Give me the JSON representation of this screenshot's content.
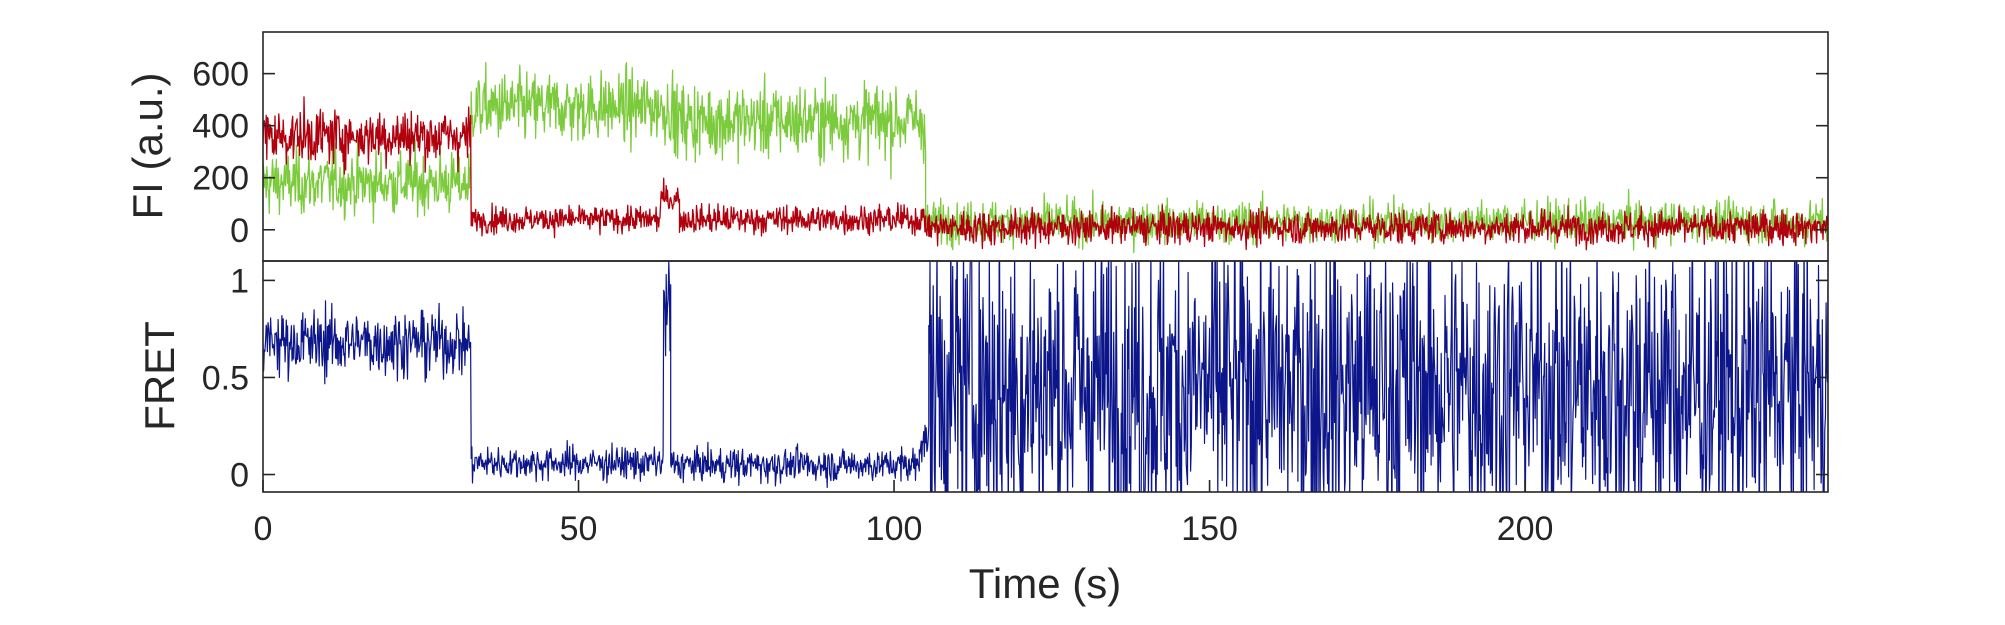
{
  "chart_data": [
    {
      "type": "line",
      "panel": "top",
      "xlabel": "",
      "ylabel": "FI (a.u.)",
      "xlim": [
        0,
        248
      ],
      "ylim": [
        -120,
        760
      ],
      "yticks": [
        0,
        200,
        400,
        600
      ],
      "ytick_labels": [
        "0",
        "200",
        "400",
        "600"
      ],
      "grid": false,
      "legend": "none",
      "series": [
        {
          "color": "#7ccb3c",
          "sample_interval": 0.1,
          "segments": [
            {
              "x": [
                0,
                33
              ],
              "mean": 180,
              "noise": 85
            },
            {
              "x": [
                33,
                65
              ],
              "mean": 470,
              "noise": 95
            },
            {
              "x": [
                65,
                105
              ],
              "mean": 420,
              "noise": 100
            },
            {
              "x": [
                105,
                248
              ],
              "mean": 30,
              "noise": 55
            }
          ]
        },
        {
          "color": "#b0000d",
          "sample_interval": 0.1,
          "segments": [
            {
              "x": [
                0,
                33
              ],
              "mean": 360,
              "noise": 75
            },
            {
              "x": [
                33,
                63
              ],
              "mean": 40,
              "noise": 35
            },
            {
              "x": [
                63,
                66
              ],
              "mean": 120,
              "noise": 40
            },
            {
              "x": [
                66,
                105
              ],
              "mean": 40,
              "noise": 38
            },
            {
              "x": [
                105,
                248
              ],
              "mean": 10,
              "noise": 45
            }
          ]
        }
      ]
    },
    {
      "type": "line",
      "panel": "bottom",
      "xlabel": "Time (s)",
      "ylabel": "FRET",
      "xlim": [
        0,
        248
      ],
      "ylim": [
        -0.09,
        1.1
      ],
      "xticks": [
        0,
        50,
        100,
        150,
        200
      ],
      "xtick_labels": [
        "0",
        "50",
        "100",
        "150",
        "200"
      ],
      "yticks": [
        0,
        0.5,
        1
      ],
      "ytick_labels": [
        "0",
        "0.5",
        "1"
      ],
      "grid": false,
      "legend": "none",
      "series": [
        {
          "color": "#0c168a",
          "sample_interval": 0.1,
          "segments": [
            {
              "x": [
                0,
                33
              ],
              "mean": 0.68,
              "noise": 0.12
            },
            {
              "x": [
                33,
                63.5
              ],
              "mean": 0.06,
              "noise": 0.06
            },
            {
              "x": [
                63.5,
                64.6
              ],
              "mean": 0.85,
              "noise": 0.2
            },
            {
              "x": [
                64.6,
                104
              ],
              "mean": 0.05,
              "noise": 0.06
            },
            {
              "x": [
                104,
                105.5
              ],
              "mean": 0.18,
              "noise": 0.08
            },
            {
              "x": [
                105.5,
                248
              ],
              "mean": 0.45,
              "noise": 0.6
            }
          ]
        }
      ]
    }
  ]
}
